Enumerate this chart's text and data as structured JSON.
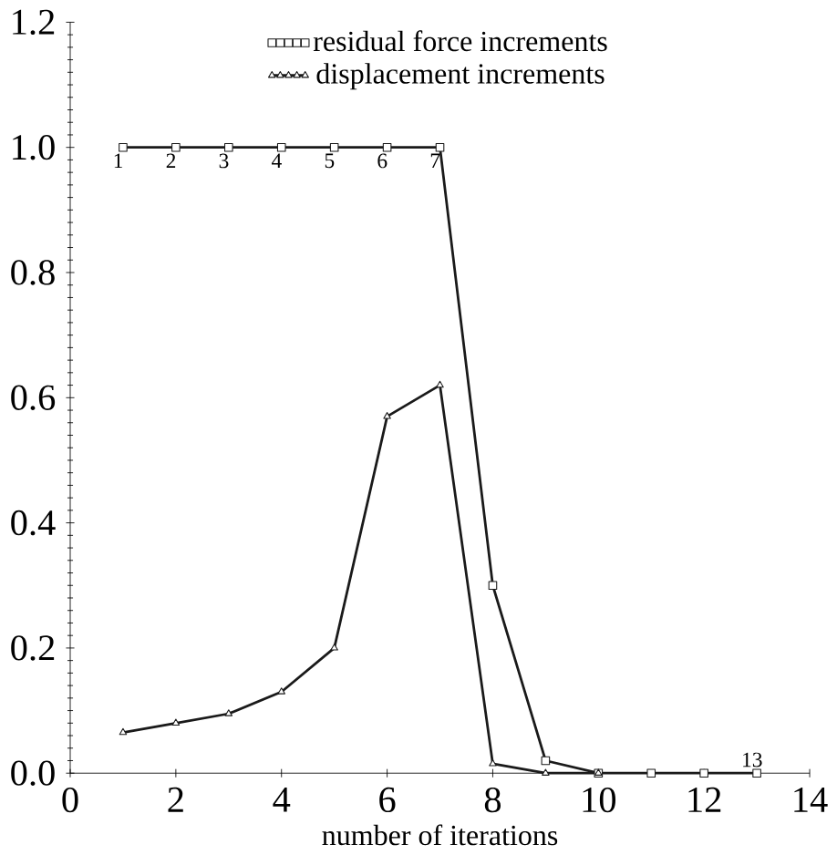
{
  "chart_data": {
    "type": "line",
    "xlabel": "number of iterations",
    "x": [
      1,
      2,
      3,
      4,
      5,
      6,
      7,
      8,
      9,
      10,
      11,
      12,
      13
    ],
    "series": [
      {
        "name": "residual force increments",
        "color": "#1a1a1a",
        "marker": "square",
        "values": [
          1.0,
          1.0,
          1.0,
          1.0,
          1.0,
          1.0,
          1.0,
          0.3,
          0.02,
          0.0,
          0.0,
          0.0,
          0.0
        ]
      },
      {
        "name": "displacement increments",
        "color": "#1a1a1a",
        "marker": "triangle",
        "x": [
          1,
          2,
          3,
          4,
          5,
          6,
          7,
          8,
          9,
          10
        ],
        "values": [
          0.065,
          0.08,
          0.095,
          0.13,
          0.2,
          0.57,
          0.62,
          0.015,
          0.0,
          0.0
        ]
      }
    ],
    "xlim": [
      0,
      14
    ],
    "xticks": [
      0,
      2,
      4,
      6,
      8,
      10,
      12,
      14
    ],
    "ylim": [
      0,
      1.2
    ],
    "yticks": [
      {
        "value": 0,
        "label": "0.0"
      },
      0.2,
      0.4,
      0.6,
      0.8,
      {
        "value": 1,
        "label": "1.0"
      },
      1.2
    ],
    "grid": false,
    "legend": "top",
    "line_style": "solid",
    "annotations": [
      {
        "text": "1",
        "x": 1,
        "y": 1.0
      },
      {
        "text": "2",
        "x": 2,
        "y": 1.0
      },
      {
        "text": "3",
        "x": 3,
        "y": 1.0
      },
      {
        "text": "4",
        "x": 4,
        "y": 1.0
      },
      {
        "text": "5",
        "x": 5,
        "y": 1.0
      },
      {
        "text": "6",
        "x": 6,
        "y": 1.0
      },
      {
        "text": "7",
        "x": 7,
        "y": 1.0
      },
      {
        "text": "13",
        "x": 13,
        "y": 0.0
      }
    ]
  }
}
